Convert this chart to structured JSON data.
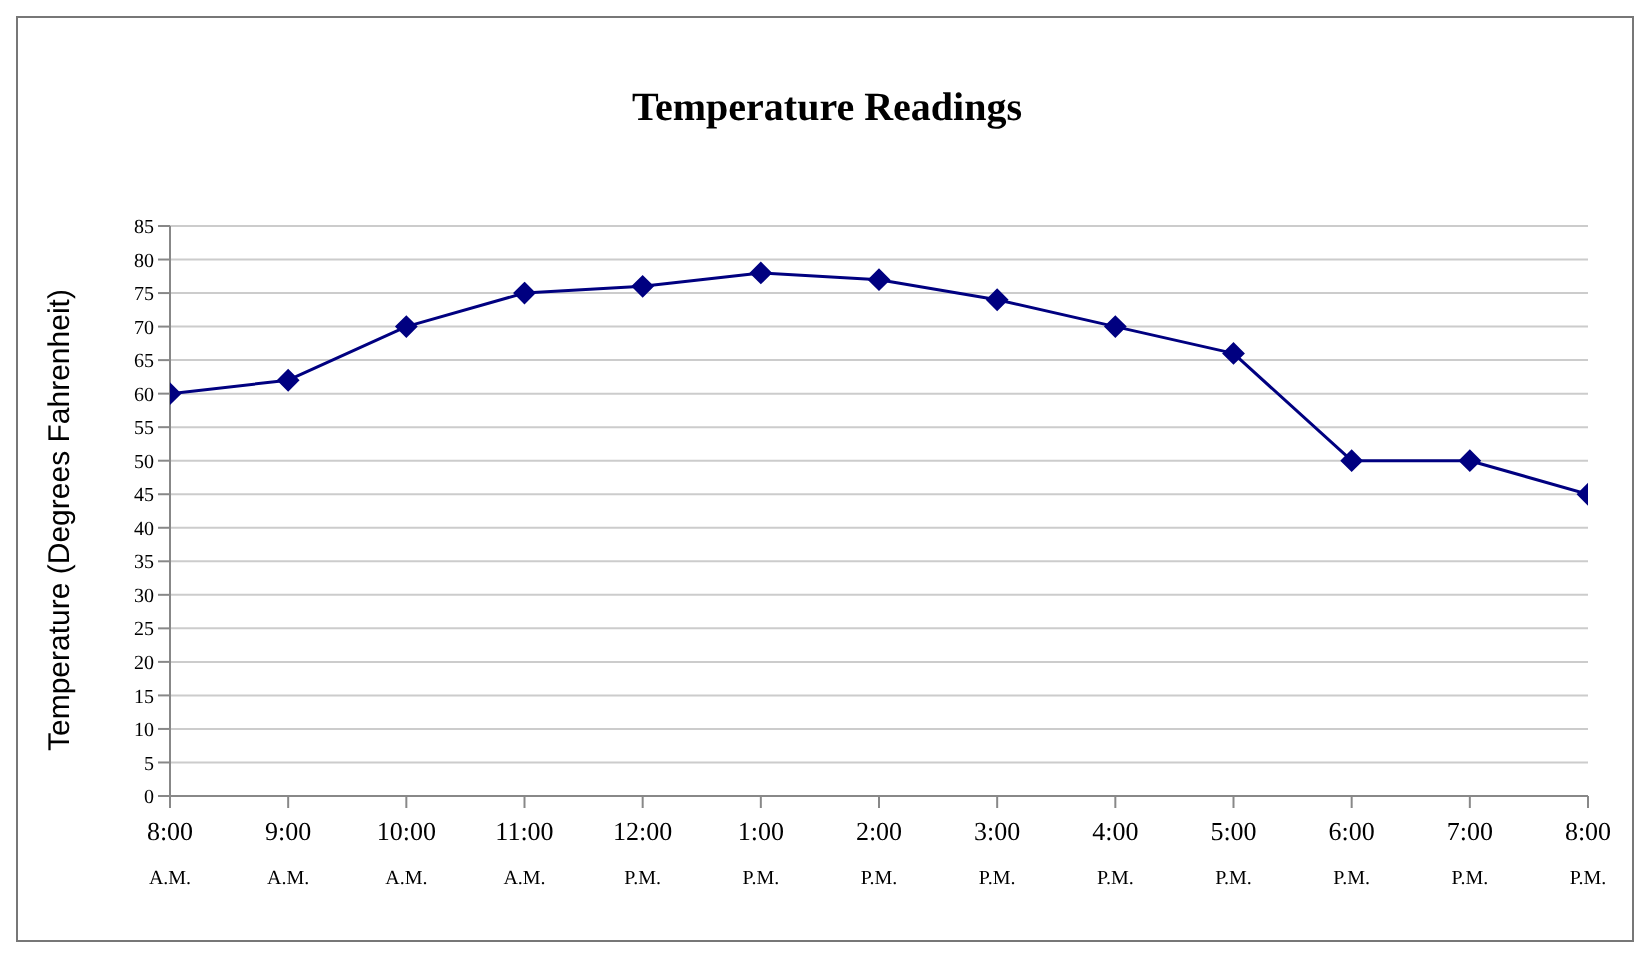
{
  "chart_data": {
    "type": "line",
    "title": "Temperature Readings",
    "ylabel": "Temperature (Degrees Fahrenheit)",
    "categories": [
      "8:00\nA.M.",
      "9:00\nA.M.",
      "10:00\nA.M.",
      "11:00\nA.M.",
      "12:00\nP.M.",
      "1:00\nP.M.",
      "2:00\nP.M.",
      "3:00\nP.M.",
      "4:00\nP.M.",
      "5:00\nP.M.",
      "6:00\nP.M.",
      "7:00\nP.M.",
      "8:00\nP.M."
    ],
    "series": [
      {
        "color": "#000080",
        "values": [
          60,
          62,
          70,
          75,
          76,
          78,
          77,
          74,
          70,
          66,
          50,
          50,
          45
        ]
      }
    ],
    "ylim": [
      0,
      85
    ],
    "yticks": [
      0,
      5,
      10,
      15,
      20,
      25,
      30,
      35,
      40,
      45,
      50,
      55,
      60,
      65,
      70,
      75,
      80,
      85
    ],
    "grid": "y",
    "legend": false,
    "marker": "diamond",
    "line_style": "solid"
  }
}
